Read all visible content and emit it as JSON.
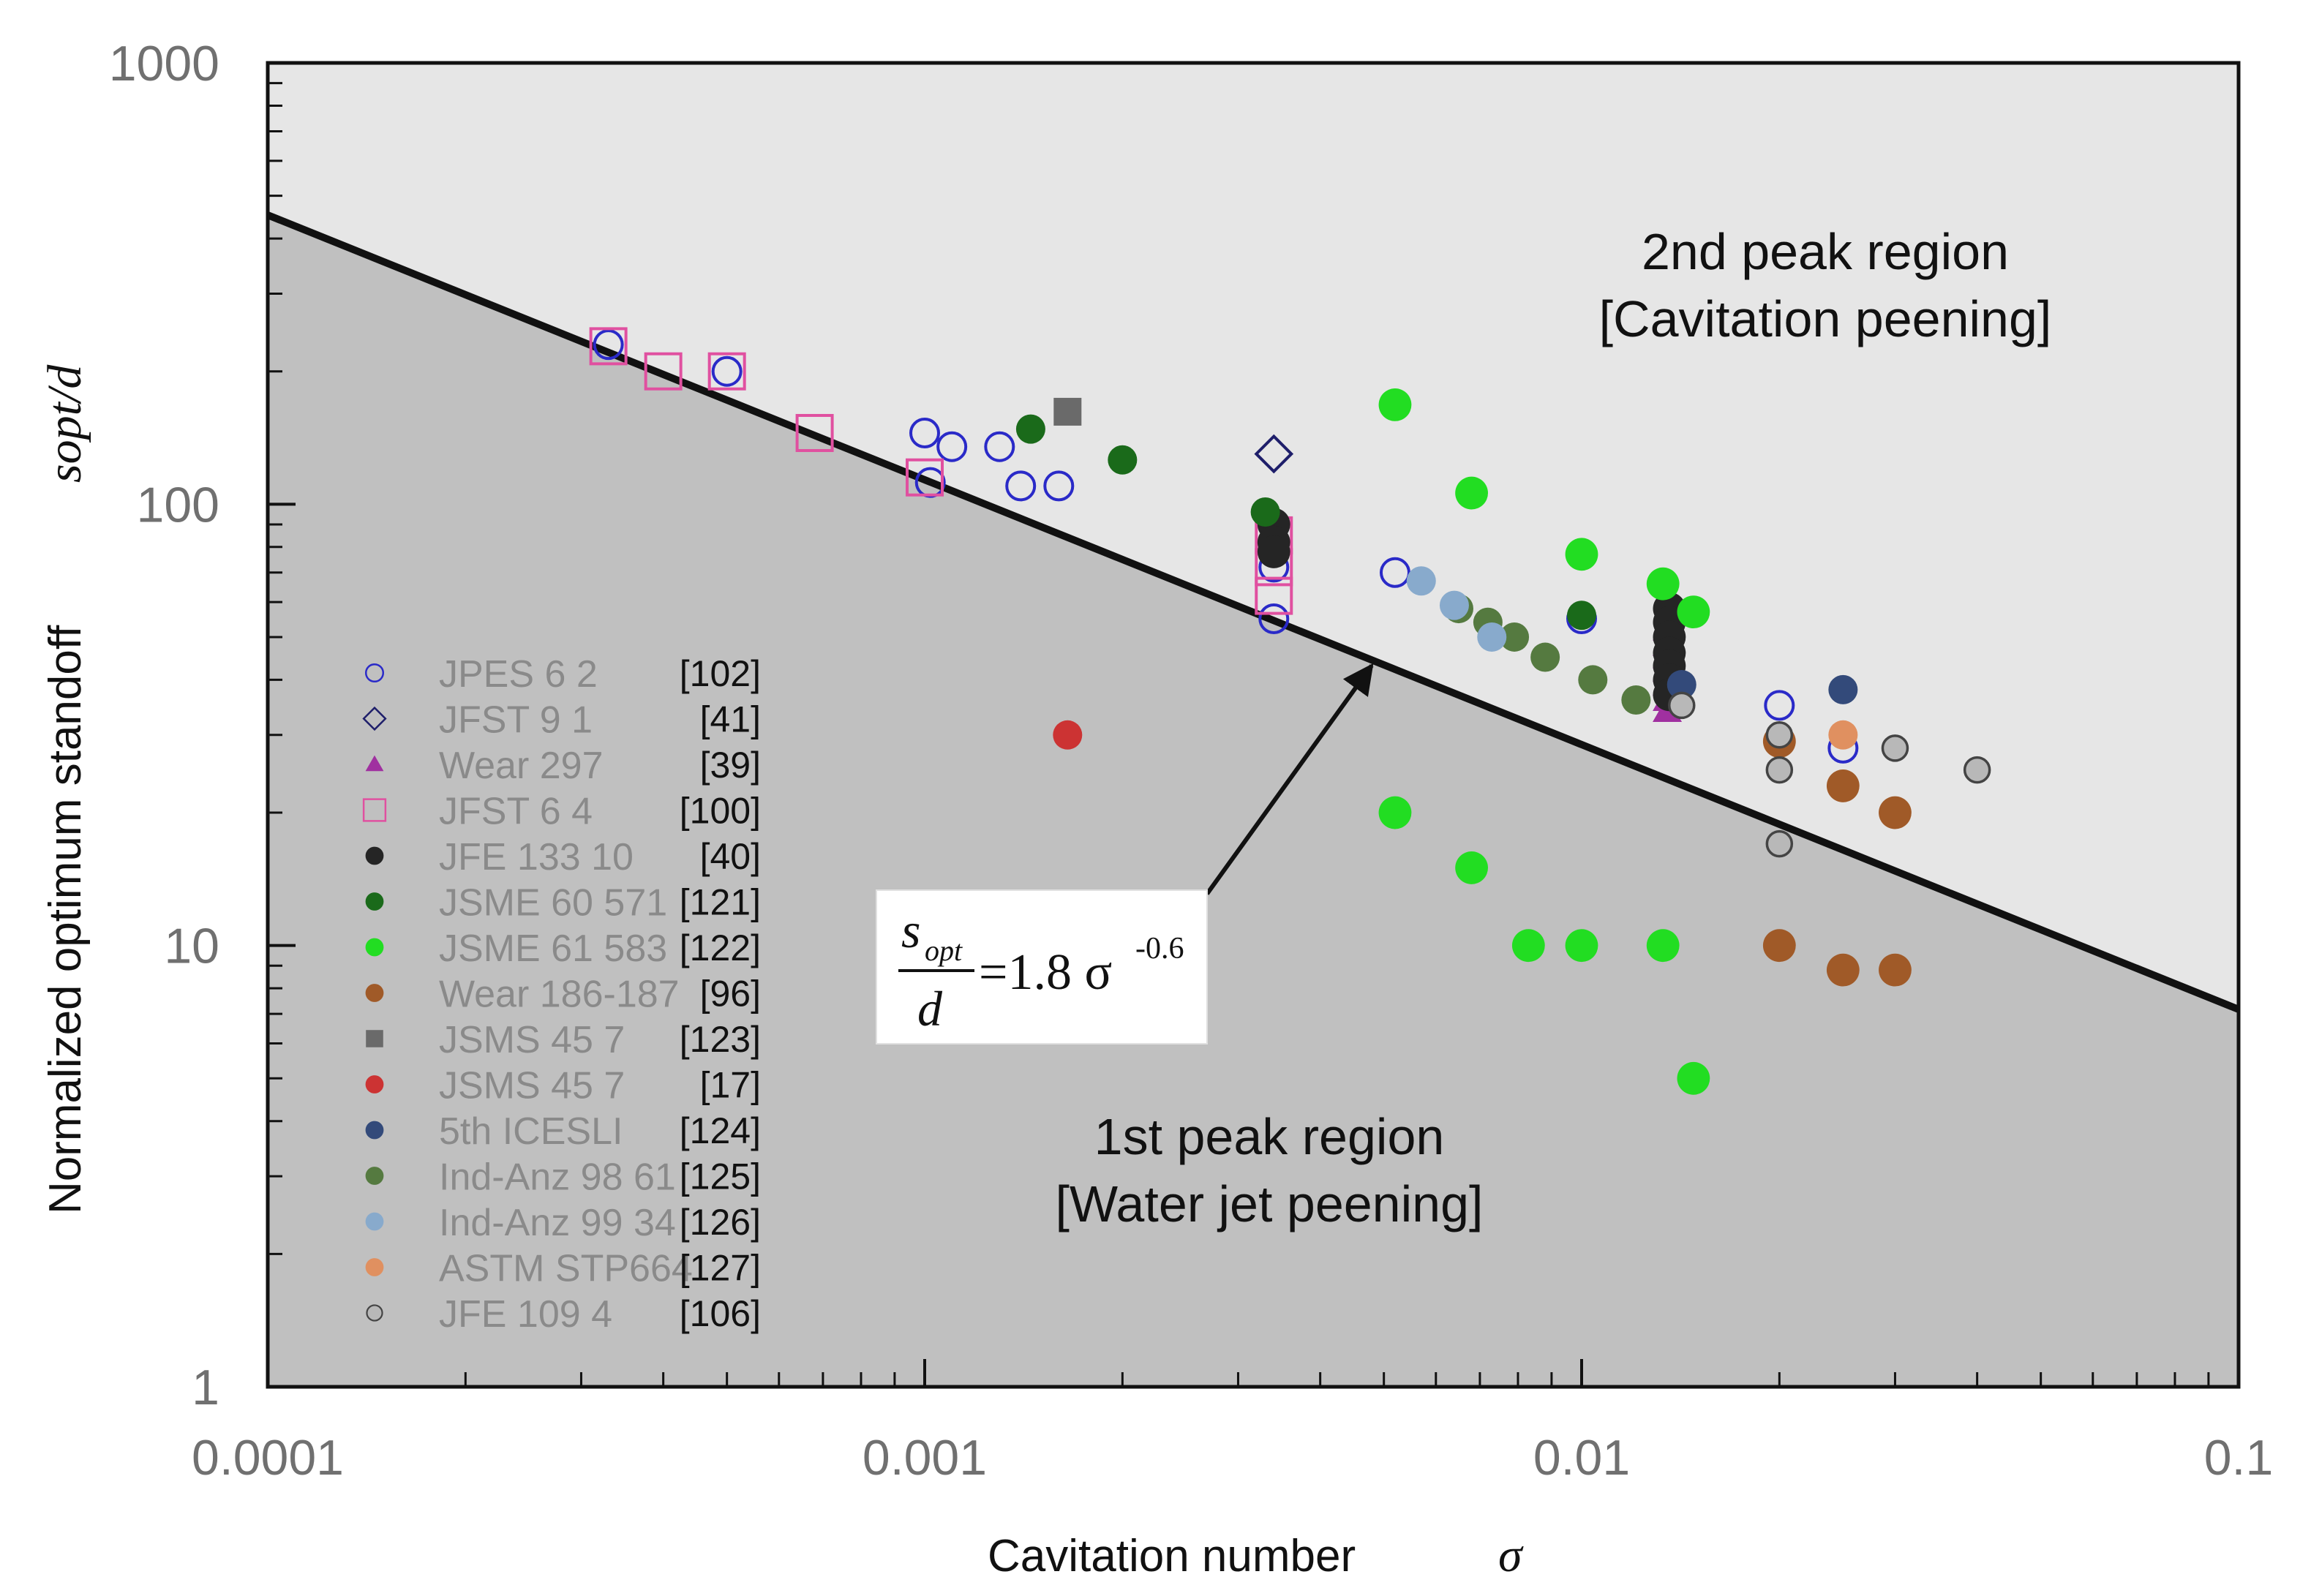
{
  "chart_data": {
    "type": "scatter",
    "title": "",
    "xlabel": "Cavitation number",
    "xlabel_symbol": "σ",
    "ylabel": "Normalized optimum standoff",
    "ylabel_symbol": "sopt/d",
    "xscale": "log",
    "yscale": "log",
    "xlim": [
      0.0001,
      0.1
    ],
    "ylim": [
      1,
      1000
    ],
    "x_ticks": [
      {
        "value": 0.0001,
        "label": "0.0001"
      },
      {
        "value": 0.001,
        "label": "0.001"
      },
      {
        "value": 0.01,
        "label": "0.01"
      },
      {
        "value": 0.1,
        "label": "0.1"
      }
    ],
    "y_ticks": [
      {
        "value": 1,
        "label": "1"
      },
      {
        "value": 10,
        "label": "10"
      },
      {
        "value": 100,
        "label": "100"
      },
      {
        "value": 1000,
        "label": "1000"
      }
    ],
    "fit_line": {
      "coefficient": 1.8,
      "exponent": -0.6,
      "label_lhs_num": "s",
      "label_lhs_sub": "opt",
      "label_lhs_den": "d",
      "label_rhs": "=1.8 σ",
      "label_exp": "-0.6"
    },
    "regions": [
      {
        "line1": "2nd peak region",
        "line2": "[Cavitation peening]",
        "position": "upper-right",
        "color": "#e6e6e6"
      },
      {
        "line1": "1st peak region",
        "line2": "[Water jet peening]",
        "position": "lower-center",
        "color": "#c0c0c0"
      }
    ],
    "legend_position": "lower-left",
    "series": [
      {
        "name": "JPES 6 2",
        "ref": "[102]",
        "marker": "open-circle",
        "color": "#2a2ac8",
        "x": [
          0.00033,
          0.0005,
          0.001,
          0.00102,
          0.0011,
          0.0013,
          0.0014,
          0.0016,
          0.0034,
          0.0034,
          0.0052,
          0.01,
          0.02,
          0.025
        ],
        "y": [
          230,
          200,
          145,
          112,
          135,
          135,
          110,
          110,
          72,
          55,
          70,
          55,
          35,
          28
        ]
      },
      {
        "name": "JFST 9 1",
        "ref": "[41]",
        "marker": "open-diamond",
        "color": "#1e1e6a",
        "x": [
          0.0034
        ],
        "y": [
          130
        ]
      },
      {
        "name": "Wear 297",
        "ref": "[39]",
        "marker": "triangle",
        "color": "#a030a0",
        "x": [
          0.0135,
          0.0135,
          0.0135,
          0.0135,
          0.0135,
          0.0135,
          0.0135
        ],
        "y": [
          34,
          36,
          39,
          42,
          45,
          48,
          52
        ]
      },
      {
        "name": "JFST 6 4",
        "ref": "[100]",
        "marker": "open-square",
        "color": "#e050a0",
        "x": [
          0.00033,
          0.0004,
          0.0005,
          0.00068,
          0.001,
          0.0034,
          0.0034,
          0.0034
        ],
        "y": [
          228,
          200,
          200,
          145,
          115,
          85,
          72,
          62
        ]
      },
      {
        "name": "JFE 133 10",
        "ref": "[40]",
        "marker": "circle",
        "color": "#252525",
        "x": [
          0.0034,
          0.0034,
          0.0034,
          0.0136,
          0.0136,
          0.0136,
          0.0136,
          0.0136,
          0.0136,
          0.0136
        ],
        "y": [
          90,
          82,
          78,
          58,
          54,
          50,
          46,
          43,
          40,
          37
        ]
      },
      {
        "name": "JSME 60 571",
        "ref": "[121]",
        "marker": "circle",
        "color": "#1a6a1a",
        "x": [
          0.00145,
          0.002,
          0.0033,
          0.01
        ],
        "y": [
          148,
          126,
          96,
          56
        ]
      },
      {
        "name": "JSME 61 583",
        "ref": "[122]",
        "marker": "circle",
        "color": "#22dd22",
        "x": [
          0.0052,
          0.0068,
          0.01,
          0.0133,
          0.0148,
          0.0052,
          0.0068,
          0.0083,
          0.01,
          0.0133,
          0.0148
        ],
        "y": [
          168,
          106,
          77,
          66,
          57,
          20,
          15,
          10,
          10,
          10,
          5
        ]
      },
      {
        "name": "Wear 186-187",
        "ref": "[96]",
        "marker": "circle",
        "color": "#a05a28",
        "x": [
          0.02,
          0.025,
          0.03,
          0.02,
          0.025,
          0.03
        ],
        "y": [
          29,
          23,
          20,
          10,
          8.8,
          8.8
        ]
      },
      {
        "name": "JSMS 45 7",
        "ref": "[123]",
        "marker": "square",
        "color": "#6a6a6a",
        "x": [
          0.00165
        ],
        "y": [
          162
        ]
      },
      {
        "name": "JSMS 45 7",
        "ref": "[17]",
        "marker": "circle",
        "color": "#cc3333",
        "x": [
          0.00165
        ],
        "y": [
          30
        ]
      },
      {
        "name": "5th ICESLI",
        "ref": "[124]",
        "marker": "circle",
        "color": "#334a7a",
        "x": [
          0.0142,
          0.025
        ],
        "y": [
          39,
          38
        ]
      },
      {
        "name": "Ind-Anz 98 61",
        "ref": "[125]",
        "marker": "circle",
        "color": "#557a40",
        "x": [
          0.0065,
          0.0072,
          0.0079,
          0.0088,
          0.0104,
          0.0121
        ],
        "y": [
          58,
          54,
          50,
          45,
          40,
          36
        ]
      },
      {
        "name": "Ind-Anz 99 34",
        "ref": "[126]",
        "marker": "circle",
        "color": "#88aacc",
        "x": [
          0.0057,
          0.0064,
          0.0073
        ],
        "y": [
          67,
          59,
          50
        ]
      },
      {
        "name": "ASTM STP664",
        "ref": "[127]",
        "marker": "circle",
        "color": "#e09060",
        "x": [
          0.025
        ],
        "y": [
          30
        ]
      },
      {
        "name": "JFE 109 4",
        "ref": "[106]",
        "marker": "open-gray-circle",
        "color": "#444444",
        "x": [
          0.0142,
          0.02,
          0.02,
          0.02,
          0.03,
          0.04
        ],
        "y": [
          35,
          30,
          25,
          17,
          28,
          25
        ]
      }
    ]
  }
}
